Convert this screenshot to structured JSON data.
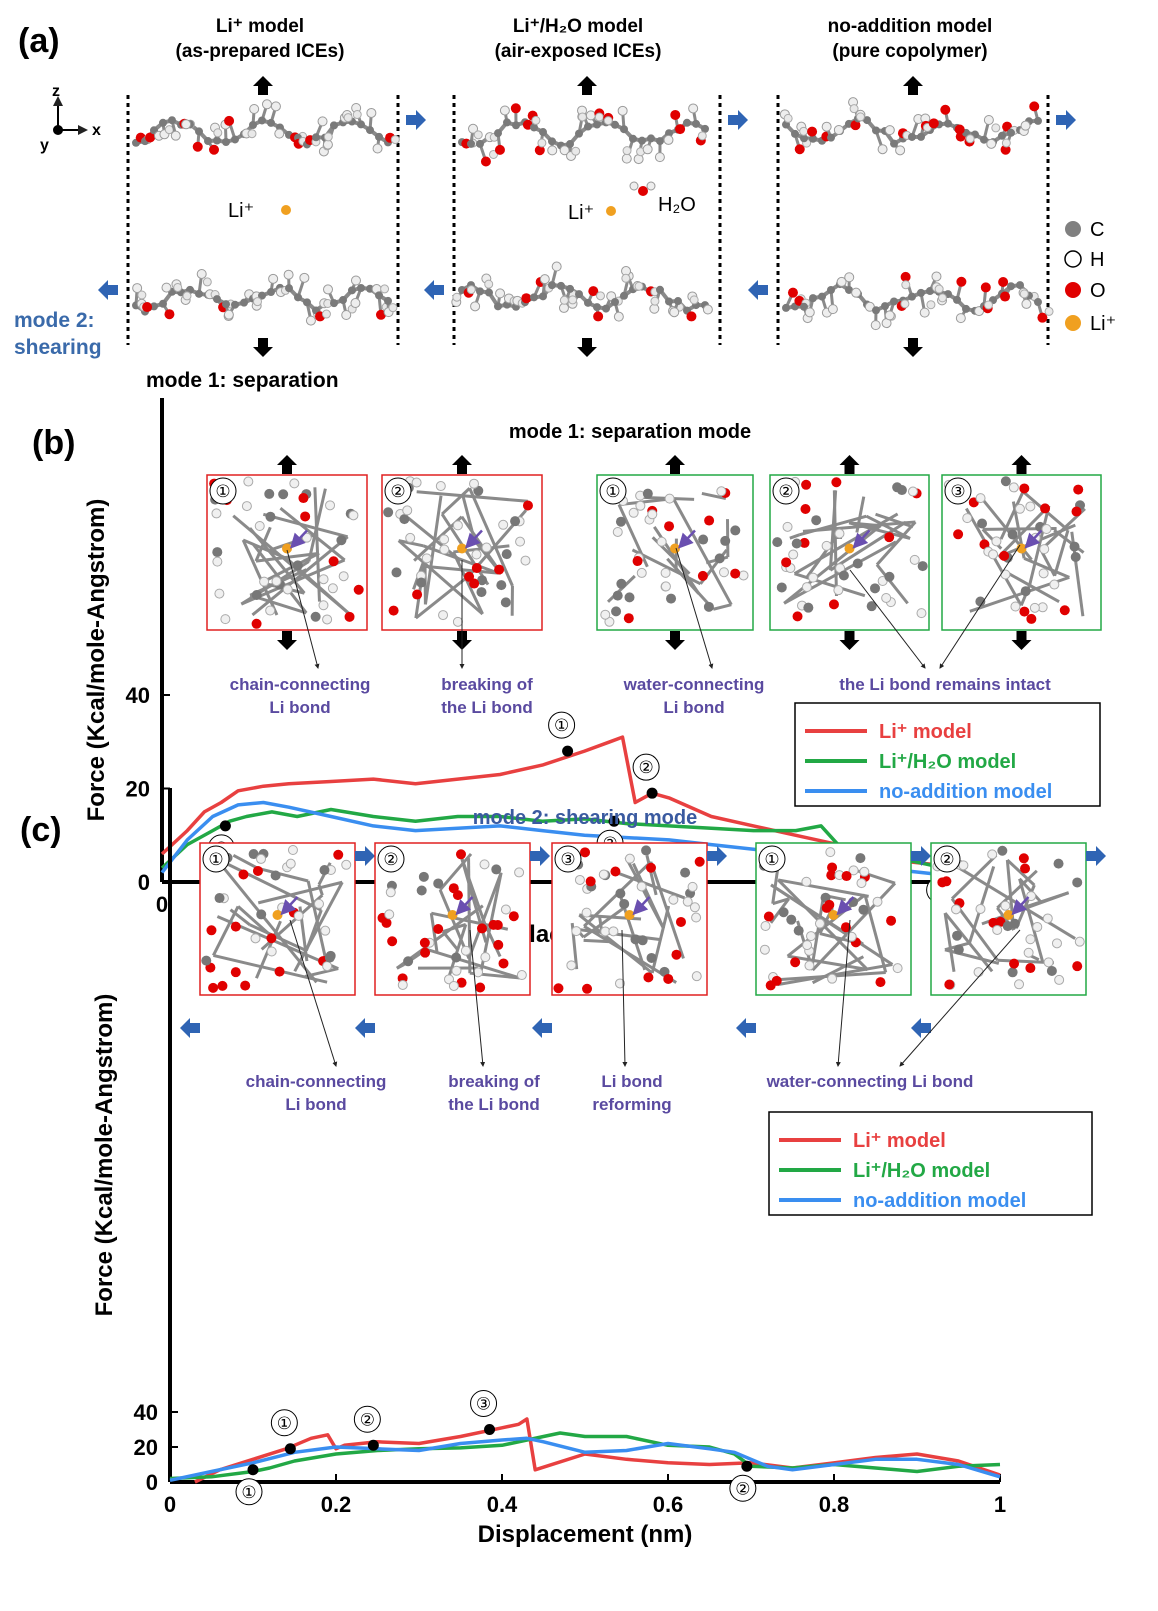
{
  "panel_a": {
    "label": "(a)",
    "models": [
      {
        "title_1": "Li⁺ model",
        "title_2": "(as-prepared ICEs)",
        "color": "#c00000"
      },
      {
        "title_1": "Li⁺/H₂O model",
        "title_2": "(air-exposed ICEs)",
        "color": "#1a9a3a"
      },
      {
        "title_1": "no-addition model",
        "title_2": "(pure copolymer)",
        "color": "#1f3fbf"
      }
    ],
    "axes": {
      "z": "z",
      "x": "x",
      "y": "y"
    },
    "li_label": "Li⁺",
    "water_label": "H₂O",
    "mode2_label_1": "mode 2:",
    "mode2_label_2": "shearing",
    "mode1_label": "mode 1: separation",
    "legend": [
      {
        "label": "C",
        "color": "#808080"
      },
      {
        "label": "H",
        "color": "#ffffff"
      },
      {
        "label": "O",
        "color": "#e00000"
      },
      {
        "label": "Li⁺",
        "color": "#f0a020"
      }
    ]
  },
  "panel_b": {
    "label": "(b)",
    "title": "mode 1: separation mode",
    "markers": [
      "①",
      "②",
      "①’",
      "②’",
      "③’"
    ],
    "captions": [
      {
        "line1": "chain-connecting",
        "line2": "Li bond"
      },
      {
        "line1": "breaking of",
        "line2": "the Li bond"
      },
      {
        "line1": "water-connecting",
        "line2": "Li bond"
      },
      {
        "line1": "the Li bond remains intact",
        "line2": ""
      }
    ]
  },
  "panel_c": {
    "label": "(c)",
    "title": "mode 2: shearing mode",
    "markers": [
      "①",
      "②",
      "③",
      "①’",
      "②’"
    ],
    "captions": [
      {
        "line1": "chain-connecting",
        "line2": "Li bond"
      },
      {
        "line1": "breaking of",
        "line2": "the Li bond"
      },
      {
        "line1": "Li bond",
        "line2": "reforming"
      },
      {
        "line1": "water-connecting Li bond",
        "line2": ""
      }
    ]
  },
  "chart_data": [
    {
      "type": "line",
      "xlabel": "Displacement (nm)",
      "ylabel": "Force (Kcal/mole-Angstrom)",
      "xlim": [
        0,
        1
      ],
      "ylim": [
        0,
        40
      ],
      "xticks": [
        "0",
        "0.2",
        "0.4",
        "0.6",
        "0.8",
        "1"
      ],
      "yticks": [
        "0",
        "20",
        "40"
      ],
      "legend_position": "right",
      "series": [
        {
          "name": "Li⁺ model",
          "color": "#e84040",
          "x": [
            0,
            0.03,
            0.05,
            0.07,
            0.09,
            0.12,
            0.15,
            0.2,
            0.25,
            0.3,
            0.35,
            0.4,
            0.45,
            0.5,
            0.53,
            0.545,
            0.56,
            0.58,
            0.6,
            0.65,
            0.7,
            0.75,
            0.8,
            0.85,
            0.9,
            0.95,
            1.0
          ],
          "y": [
            6,
            11,
            15,
            17,
            19.5,
            20.5,
            21,
            21.5,
            22,
            21,
            22,
            23,
            25,
            28,
            30,
            31,
            17,
            19,
            18,
            14,
            12,
            10,
            8,
            5,
            4,
            3,
            1
          ]
        },
        {
          "name": "Li⁺/H₂O model",
          "color": "#22a845",
          "x": [
            0,
            0.03,
            0.06,
            0.08,
            0.1,
            0.13,
            0.16,
            0.2,
            0.25,
            0.3,
            0.35,
            0.4,
            0.45,
            0.5,
            0.55,
            0.6,
            0.65,
            0.7,
            0.75,
            0.78,
            0.8,
            0.85,
            0.9,
            0.95,
            1.0
          ],
          "y": [
            3,
            8,
            11,
            13,
            14,
            15,
            14,
            15.5,
            14,
            13,
            14,
            14,
            13,
            13.5,
            12.5,
            12,
            11.5,
            11,
            11,
            12,
            8,
            6,
            4,
            2,
            1
          ]
        },
        {
          "name": "no-addition model",
          "color": "#3a8ef0",
          "x": [
            0,
            0.03,
            0.06,
            0.09,
            0.12,
            0.15,
            0.2,
            0.25,
            0.3,
            0.35,
            0.4,
            0.45,
            0.5,
            0.55,
            0.6,
            0.65,
            0.7,
            0.75,
            0.8,
            0.85,
            0.9,
            0.95,
            1.0
          ],
          "y": [
            2,
            9,
            14,
            16.5,
            17,
            16,
            14,
            12,
            11,
            11.5,
            12,
            11,
            10,
            9.5,
            9,
            8,
            7,
            6,
            4,
            3,
            2,
            1,
            0
          ]
        }
      ],
      "annotated_points": [
        {
          "label": "①",
          "x": 0.48,
          "y": 28
        },
        {
          "label": "②",
          "x": 0.58,
          "y": 19
        },
        {
          "label": "①’",
          "x": 0.075,
          "y": 12
        },
        {
          "label": "②’",
          "x": 0.535,
          "y": 13
        },
        {
          "label": "③’",
          "x": 0.925,
          "y": 3
        }
      ]
    },
    {
      "type": "line",
      "xlabel": "Displacement (nm)",
      "ylabel": "Force (Kcal/mole-Angstrom)",
      "xlim": [
        0,
        1
      ],
      "ylim": [
        0,
        40
      ],
      "xticks": [
        "0",
        "0.2",
        "0.4",
        "0.6",
        "0.8",
        "1"
      ],
      "yticks": [
        "0",
        "20",
        "40"
      ],
      "legend_position": "right",
      "series": [
        {
          "name": "Li⁺ model",
          "color": "#e84040",
          "x": [
            0.03,
            0.06,
            0.1,
            0.14,
            0.17,
            0.19,
            0.2,
            0.21,
            0.25,
            0.3,
            0.35,
            0.4,
            0.42,
            0.43,
            0.44,
            0.5,
            0.55,
            0.6,
            0.65,
            0.7,
            0.75,
            0.8,
            0.85,
            0.9,
            0.95,
            1.0
          ],
          "y": [
            0,
            7,
            13,
            19,
            25,
            27,
            19,
            21,
            23,
            22,
            26,
            31,
            33,
            36,
            7,
            16,
            13,
            11,
            10,
            11,
            8,
            11,
            14,
            16,
            12,
            4
          ]
        },
        {
          "name": "Li⁺/H₂O model",
          "color": "#22a845",
          "x": [
            0,
            0.05,
            0.1,
            0.12,
            0.15,
            0.2,
            0.25,
            0.3,
            0.35,
            0.4,
            0.45,
            0.47,
            0.5,
            0.55,
            0.6,
            0.65,
            0.68,
            0.7,
            0.75,
            0.8,
            0.85,
            0.9,
            0.95,
            1.0
          ],
          "y": [
            2,
            3,
            6,
            8,
            12,
            16,
            18,
            19,
            19.5,
            21,
            26,
            28,
            26,
            26,
            21,
            20,
            16,
            9,
            8,
            10,
            8,
            6,
            9,
            10
          ]
        },
        {
          "name": "no-addition model",
          "color": "#3a8ef0",
          "x": [
            0,
            0.05,
            0.1,
            0.15,
            0.2,
            0.25,
            0.3,
            0.35,
            0.4,
            0.43,
            0.45,
            0.5,
            0.55,
            0.6,
            0.65,
            0.68,
            0.72,
            0.75,
            0.8,
            0.85,
            0.9,
            0.95,
            1.0
          ],
          "y": [
            1,
            6,
            11,
            17,
            20,
            19,
            18,
            22,
            24,
            25,
            23,
            17,
            18,
            22,
            19,
            17,
            9,
            7,
            10,
            13,
            13,
            10,
            3
          ]
        }
      ],
      "annotated_points": [
        {
          "label": "①",
          "x": 0.145,
          "y": 19
        },
        {
          "label": "②",
          "x": 0.245,
          "y": 21
        },
        {
          "label": "③",
          "x": 0.385,
          "y": 30
        },
        {
          "label": "①’",
          "x": 0.1,
          "y": 7
        },
        {
          "label": "②’",
          "x": 0.695,
          "y": 9
        }
      ]
    }
  ]
}
